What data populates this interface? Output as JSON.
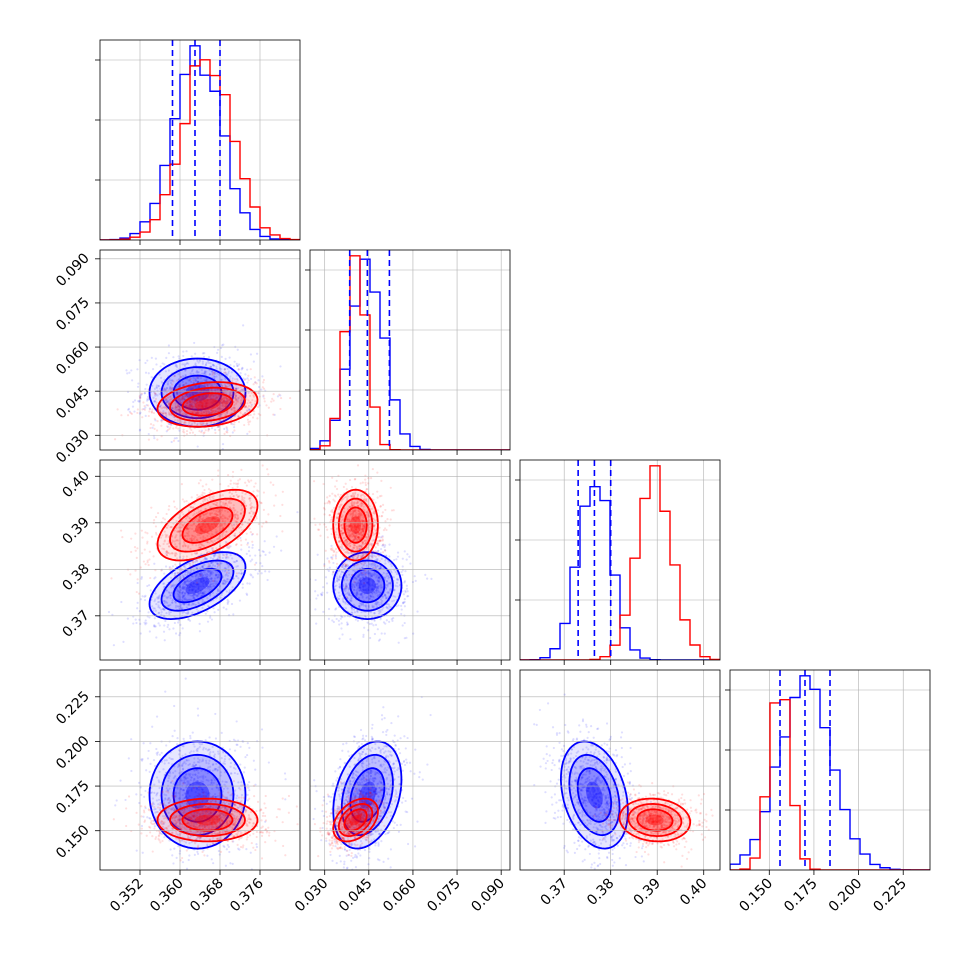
{
  "chart_data": {
    "type": "corner",
    "grid": true,
    "colors": {
      "series_a": "#0000ff",
      "series_b": "#ff0000",
      "quantile_line": "#0000ff"
    },
    "series": [
      {
        "color": "blue",
        "means": [
          0.3635,
          0.0445,
          0.3765,
          0.17
        ],
        "stds": [
          0.0048,
          0.0058,
          0.0036,
          0.015
        ],
        "corr": {
          "0-2": 0.55,
          "2-3": -0.3,
          "0-1": 0.0,
          "1-3": 0.3
        },
        "quantiles_16_50_84": [
          [
            0.3585,
            0.363,
            0.368
          ],
          [
            0.0385,
            0.0445,
            0.052
          ],
          [
            0.373,
            0.3765,
            0.38
          ],
          [
            0.156,
            0.17,
            0.184
          ]
        ]
      },
      {
        "color": "red",
        "means": [
          0.3655,
          0.0405,
          0.3895,
          0.156
        ],
        "stds": [
          0.005,
          0.0038,
          0.0038,
          0.006
        ],
        "corr": {
          "0-2": 0.55,
          "2-3": -0.1,
          "0-1": 0.2,
          "1-3": 0.4
        }
      }
    ],
    "params": [
      {
        "range": [
          0.344,
          0.384
        ],
        "ticks": [
          0.352,
          0.36,
          0.368,
          0.376
        ],
        "labels": [
          "0.352",
          "0.360",
          "0.368",
          "0.376"
        ]
      },
      {
        "range": [
          0.025,
          0.093
        ],
        "ticks": [
          0.03,
          0.045,
          0.06,
          0.075,
          0.09
        ],
        "labels": [
          "0.030",
          "0.045",
          "0.060",
          "0.075",
          "0.090"
        ]
      },
      {
        "range": [
          0.3605,
          0.4035
        ],
        "ticks": [
          0.37,
          0.38,
          0.39,
          0.4
        ],
        "labels": [
          "0.37",
          "0.38",
          "0.39",
          "0.40"
        ]
      },
      {
        "range": [
          0.128,
          0.24
        ],
        "ticks": [
          0.15,
          0.175,
          0.2,
          0.225
        ],
        "labels": [
          "0.150",
          "0.175",
          "0.200",
          "0.225"
        ]
      }
    ]
  }
}
